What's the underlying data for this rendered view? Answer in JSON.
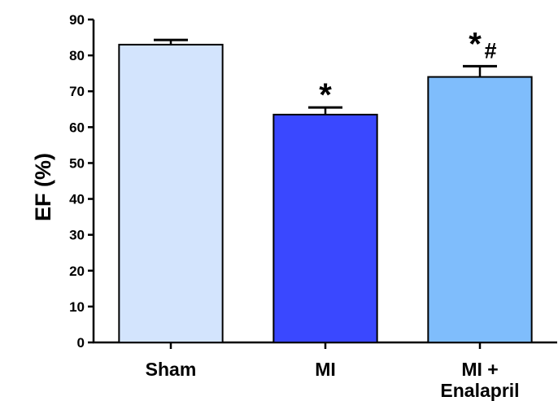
{
  "chart_data": {
    "type": "bar",
    "title": "",
    "xlabel": "",
    "ylabel": "EF (%)",
    "ylim": [
      0,
      90
    ],
    "yticks": [
      0,
      10,
      20,
      30,
      40,
      50,
      60,
      70,
      80,
      90
    ],
    "grid": false,
    "categories": [
      {
        "lines": [
          "Sham"
        ]
      },
      {
        "lines": [
          "MI"
        ]
      },
      {
        "lines": [
          "MI +",
          "Enalapril"
        ]
      }
    ],
    "values": [
      83,
      63.5,
      74
    ],
    "errors": [
      1.3,
      2,
      3
    ],
    "colors": [
      "#d3e4fd",
      "#3a48ff",
      "#7fbdfc"
    ],
    "annotations": [
      {
        "category": 1,
        "marks": [
          {
            "text": "*"
          }
        ]
      },
      {
        "category": 2,
        "marks": [
          {
            "text": "*"
          },
          {
            "text": "#"
          }
        ]
      }
    ]
  }
}
